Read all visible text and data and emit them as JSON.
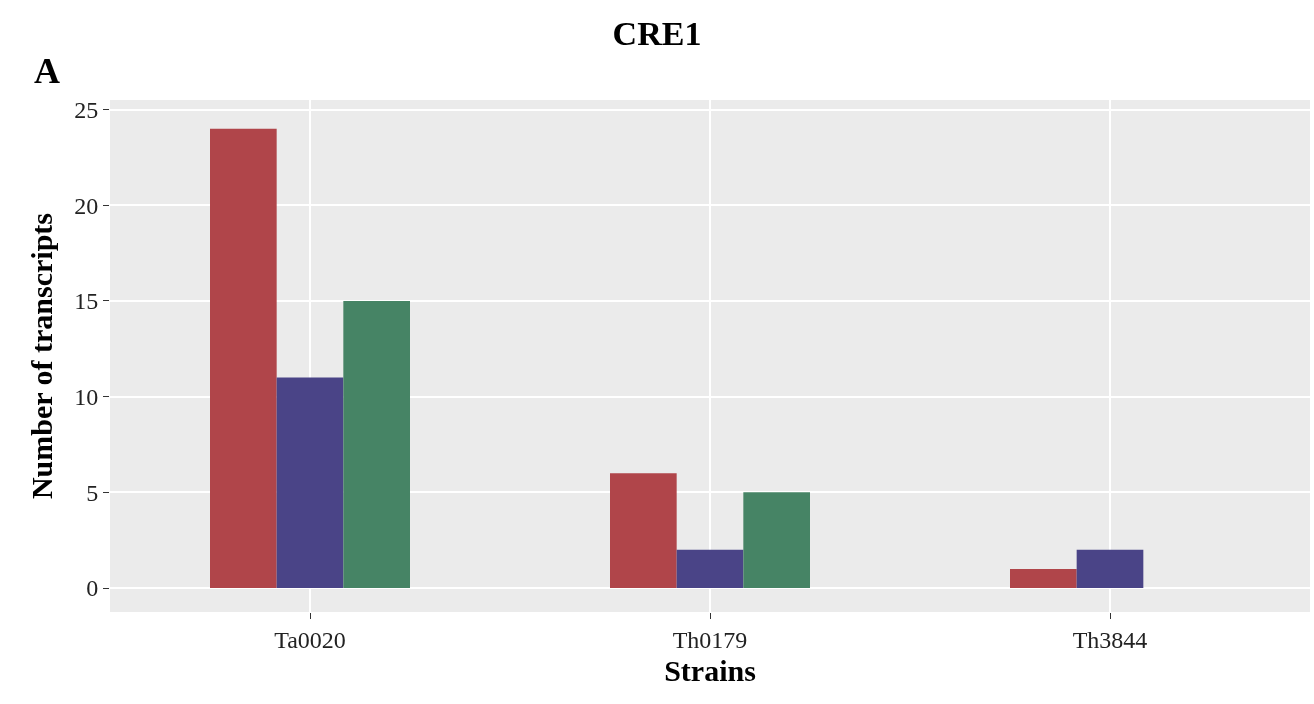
{
  "chart_data": {
    "type": "bar",
    "title": "CRE1",
    "xlabel": "Strains",
    "ylabel": "Number of transcripts",
    "annotations": [
      "A"
    ],
    "categories": [
      "Ta0020",
      "Th0179",
      "Th3844"
    ],
    "series": [
      {
        "color": "#b0454a",
        "values": [
          24,
          6,
          1
        ]
      },
      {
        "color": "#4a4487",
        "values": [
          11,
          2,
          2
        ]
      },
      {
        "color": "#468465",
        "values": [
          15,
          5,
          null
        ]
      }
    ],
    "ylim": [
      -1.25,
      25.5
    ],
    "yticks": [
      0,
      5,
      10,
      15,
      20,
      25
    ],
    "grid": true
  }
}
